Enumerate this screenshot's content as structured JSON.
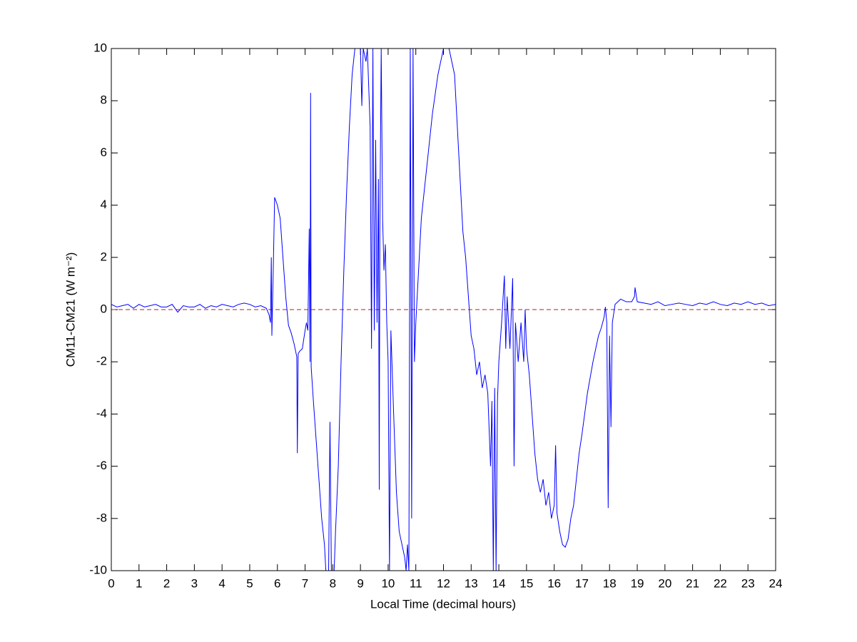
{
  "chart_data": {
    "type": "line",
    "xlabel": "Local Time (decimal hours)",
    "ylabel": "CM11-CM21 (W m⁻²)",
    "xlim": [
      0,
      24
    ],
    "ylim": [
      -10,
      10
    ],
    "xticks": [
      0,
      1,
      2,
      3,
      4,
      5,
      6,
      7,
      8,
      9,
      10,
      11,
      12,
      13,
      14,
      15,
      16,
      17,
      18,
      19,
      20,
      21,
      22,
      23,
      24
    ],
    "yticks": [
      -10,
      -8,
      -6,
      -4,
      -2,
      0,
      2,
      4,
      6,
      8,
      10
    ],
    "hline": {
      "value": 0,
      "color": "#b22222"
    },
    "x": [
      0,
      0.2,
      0.4,
      0.6,
      0.8,
      1,
      1.2,
      1.4,
      1.6,
      1.8,
      2,
      2.2,
      2.4,
      2.6,
      2.8,
      3,
      3.2,
      3.4,
      3.6,
      3.8,
      4,
      4.2,
      4.4,
      4.6,
      4.8,
      5,
      5.2,
      5.4,
      5.6,
      5.7,
      5.75,
      5.78,
      5.8,
      5.85,
      5.9,
      6.0,
      6.1,
      6.2,
      6.3,
      6.4,
      6.5,
      6.6,
      6.7,
      6.72,
      6.75,
      6.8,
      6.9,
      7.0,
      7.05,
      7.1,
      7.15,
      7.18,
      7.2,
      7.22,
      7.3,
      7.4,
      7.5,
      7.6,
      7.7,
      7.75,
      7.85,
      7.9,
      7.95,
      8.05,
      8.1,
      8.2,
      8.3,
      8.4,
      8.5,
      8.6,
      8.7,
      8.8,
      9.0,
      9.05,
      9.1,
      9.2,
      9.25,
      9.35,
      9.4,
      9.45,
      9.5,
      9.55,
      9.6,
      9.65,
      9.68,
      9.7,
      9.75,
      9.8,
      9.85,
      9.9,
      9.95,
      10.0,
      10.05,
      10.1,
      10.2,
      10.3,
      10.4,
      10.5,
      10.6,
      10.65,
      10.7,
      10.75,
      10.8,
      10.85,
      10.9,
      10.95,
      11.0,
      11.1,
      11.2,
      11.4,
      11.6,
      11.8,
      12.0,
      12.2,
      12.4,
      12.5,
      12.6,
      12.7,
      12.8,
      12.9,
      13.0,
      13.1,
      13.2,
      13.3,
      13.4,
      13.5,
      13.6,
      13.7,
      13.75,
      13.8,
      13.85,
      13.9,
      13.95,
      14.0,
      14.1,
      14.2,
      14.25,
      14.3,
      14.4,
      14.5,
      14.55,
      14.6,
      14.7,
      14.8,
      14.9,
      14.95,
      15.0,
      15.1,
      15.2,
      15.3,
      15.4,
      15.5,
      15.6,
      15.7,
      15.8,
      15.9,
      16.0,
      16.05,
      16.1,
      16.2,
      16.3,
      16.4,
      16.5,
      16.6,
      16.7,
      16.8,
      16.9,
      17.0,
      17.1,
      17.2,
      17.3,
      17.4,
      17.5,
      17.6,
      17.7,
      17.8,
      17.85,
      17.9,
      17.95,
      18.0,
      18.05,
      18.1,
      18.2,
      18.3,
      18.4,
      18.5,
      18.6,
      18.8,
      18.9,
      18.92,
      19.0,
      19.25,
      19.5,
      19.75,
      20,
      20.25,
      20.5,
      20.75,
      21,
      21.25,
      21.5,
      21.75,
      22,
      22.25,
      22.5,
      22.75,
      23,
      23.25,
      23.5,
      23.75,
      24
    ],
    "series": [
      {
        "color": "#0000ff",
        "values": [
          0.2,
          0.1,
          0.15,
          0.2,
          0.05,
          0.2,
          0.1,
          0.15,
          0.2,
          0.1,
          0.1,
          0.2,
          -0.1,
          0.15,
          0.1,
          0.1,
          0.2,
          0.05,
          0.15,
          0.1,
          0.2,
          0.15,
          0.1,
          0.2,
          0.25,
          0.2,
          0.1,
          0.15,
          0.05,
          -0.2,
          -0.5,
          2.0,
          -1.0,
          1.5,
          4.3,
          4.0,
          3.5,
          2.0,
          0.5,
          -0.6,
          -0.9,
          -1.3,
          -1.8,
          -5.5,
          -1.7,
          -1.6,
          -1.5,
          -0.8,
          -0.5,
          -0.8,
          3.1,
          -2.0,
          8.3,
          -2.2,
          -3.5,
          -5.0,
          -6.5,
          -8.0,
          -9.0,
          -10,
          -10,
          -4.3,
          -10,
          -10,
          -8.5,
          -6.0,
          -2.0,
          1.5,
          4.5,
          7.0,
          9.0,
          10,
          10,
          7.8,
          10,
          9.5,
          10,
          7.0,
          -1.5,
          10,
          -0.8,
          6.5,
          -0.5,
          5.0,
          -6.9,
          3.0,
          10,
          3.5,
          1.5,
          2.5,
          -0.5,
          -2.0,
          -10,
          -0.8,
          -4.0,
          -7.0,
          -8.5,
          -9.0,
          -9.5,
          -10,
          -9.0,
          -10,
          10,
          -8.0,
          10,
          -2.0,
          -0.5,
          1.5,
          3.5,
          5.5,
          7.5,
          9.0,
          10,
          10,
          9.0,
          7.0,
          5.0,
          3.0,
          2.0,
          0.5,
          -1.0,
          -1.5,
          -2.5,
          -2.0,
          -3.0,
          -2.5,
          -3.2,
          -6.0,
          -3.5,
          -10,
          -3.0,
          -10,
          -3.5,
          -2.0,
          -0.5,
          1.3,
          -1.5,
          0.5,
          -1.5,
          1.2,
          -6.0,
          -0.5,
          -2.0,
          -0.5,
          -2.0,
          0.0,
          -1.5,
          -2.5,
          -4.0,
          -5.5,
          -6.5,
          -7.0,
          -6.5,
          -7.5,
          -7.0,
          -8.0,
          -7.5,
          -5.2,
          -7.8,
          -8.5,
          -9.0,
          -9.1,
          -8.8,
          -8.0,
          -7.5,
          -6.5,
          -5.5,
          -4.8,
          -4.0,
          -3.2,
          -2.6,
          -2.0,
          -1.5,
          -1.0,
          -0.7,
          -0.3,
          0.1,
          -0.5,
          -7.6,
          -1.0,
          -4.5,
          -0.5,
          0.2,
          0.3,
          0.4,
          0.35,
          0.3,
          0.3,
          0.5,
          0.85,
          0.3,
          0.25,
          0.2,
          0.3,
          0.15,
          0.2,
          0.25,
          0.2,
          0.15,
          0.25,
          0.2,
          0.3,
          0.2,
          0.15,
          0.25,
          0.2,
          0.3,
          0.2,
          0.25,
          0.15,
          0.2
        ]
      }
    ]
  }
}
